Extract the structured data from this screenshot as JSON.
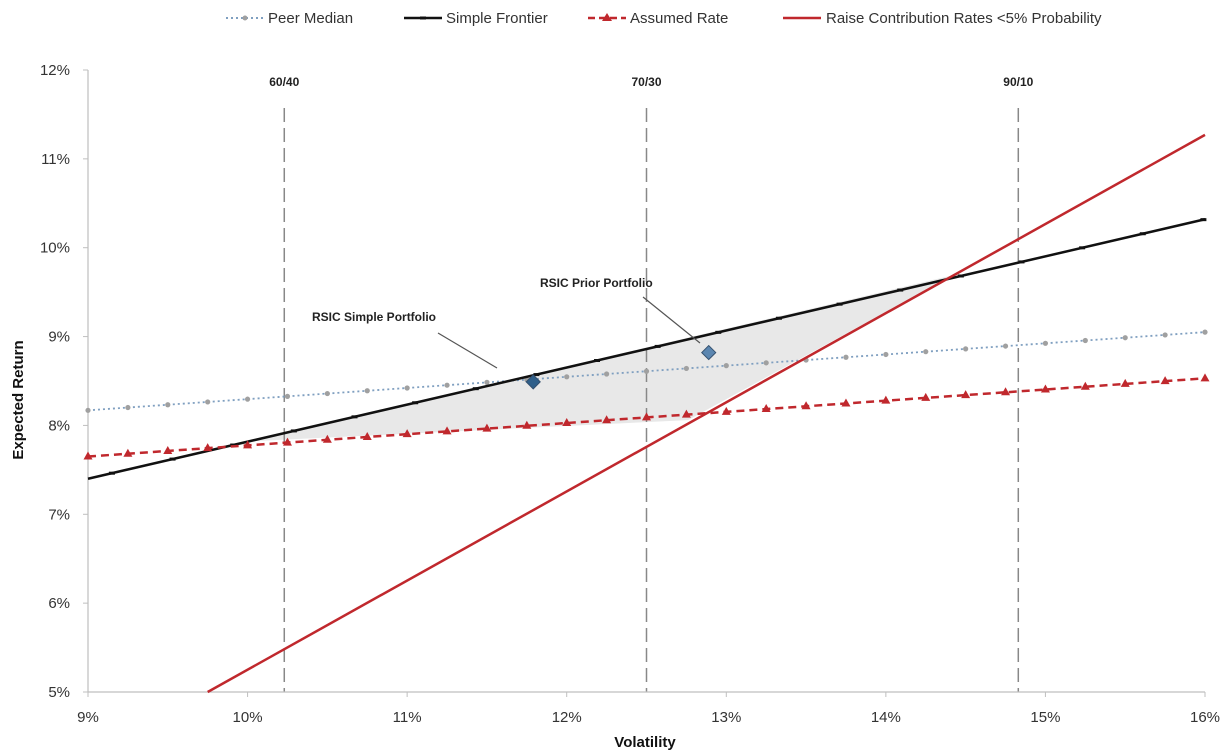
{
  "chart_data": {
    "type": "line",
    "xlabel": "Volatility",
    "ylabel": "Expected Return",
    "xlim": [
      0.09,
      0.16
    ],
    "ylim": [
      0.05,
      0.12
    ],
    "x_ticks": [
      "9%",
      "10%",
      "11%",
      "12%",
      "13%",
      "14%",
      "15%",
      "16%"
    ],
    "y_ticks": [
      "5%",
      "6%",
      "7%",
      "8%",
      "9%",
      "10%",
      "11%",
      "12%"
    ],
    "grid": false,
    "legend_position": "top",
    "series": [
      {
        "name": "Peer Median",
        "color": "#7f9fc0",
        "style": "dotted",
        "marker": "circle",
        "x": [
          0.09,
          0.16
        ],
        "y": [
          0.0817,
          0.0905
        ]
      },
      {
        "name": "Simple Frontier",
        "color": "#111111",
        "style": "solid",
        "marker": "dash",
        "x": [
          0.09,
          0.16
        ],
        "y": [
          0.074,
          0.1032
        ]
      },
      {
        "name": "Assumed Rate",
        "color": "#c0282d",
        "style": "dashed",
        "marker": "triangle",
        "x": [
          0.09,
          0.16
        ],
        "y": [
          0.0765,
          0.0853
        ]
      },
      {
        "name": "Raise Contribution Rates <5% Probability",
        "color": "#c0282d",
        "style": "solid",
        "marker": "none",
        "x": [
          0.0975,
          0.16
        ],
        "y": [
          0.05,
          0.1127
        ]
      }
    ],
    "reference_lines": [
      {
        "label": "60/40",
        "x": 0.1023
      },
      {
        "label": "70/30",
        "x": 0.125
      },
      {
        "label": "90/10",
        "x": 0.1483
      }
    ],
    "points": [
      {
        "label": "RSIC Simple Portfolio",
        "x": 0.1179,
        "y": 0.0849,
        "color": "#2f5f8a"
      },
      {
        "label": "RSIC Prior Portfolio",
        "x": 0.1289,
        "y": 0.0882,
        "color": "#5b86b0"
      }
    ],
    "shaded_region": {
      "fill": "#e8e8e8",
      "vertices": [
        [
          0.1,
          0.0782
        ],
        [
          0.1442,
          0.0969
        ],
        [
          0.1276,
          0.0806
        ]
      ]
    }
  }
}
